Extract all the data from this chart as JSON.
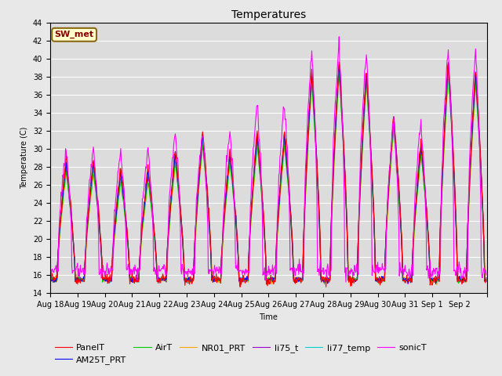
{
  "title": "Temperatures",
  "xlabel": "Time",
  "ylabel": "Temperature (C)",
  "ylim": [
    14,
    44
  ],
  "annotation_text": "SW_met",
  "annotation_color": "#8B0000",
  "annotation_bg": "#FFFFCC",
  "annotation_border": "#8B6914",
  "series_colors": {
    "PanelT": "#FF0000",
    "AM25T_PRT": "#0000FF",
    "AirT": "#00CC00",
    "NR01_PRT": "#FFA500",
    "li75_t": "#9900CC",
    "li77_temp": "#00CCCC",
    "sonicT": "#FF00FF"
  },
  "x_tick_labels": [
    "Aug 18",
    "Aug 19",
    "Aug 20",
    "Aug 21",
    "Aug 22",
    "Aug 23",
    "Aug 24",
    "Aug 25",
    "Aug 26",
    "Aug 27",
    "Aug 28",
    "Aug 29",
    "Aug 30",
    "Aug 31",
    "Sep 1",
    "Sep 2"
  ],
  "bg_color": "#E8E8E8",
  "plot_bg": "#DCDCDC",
  "grid_color": "#FFFFFF",
  "title_fontsize": 10,
  "legend_fontsize": 8,
  "tick_fontsize": 7,
  "lw": 0.8
}
